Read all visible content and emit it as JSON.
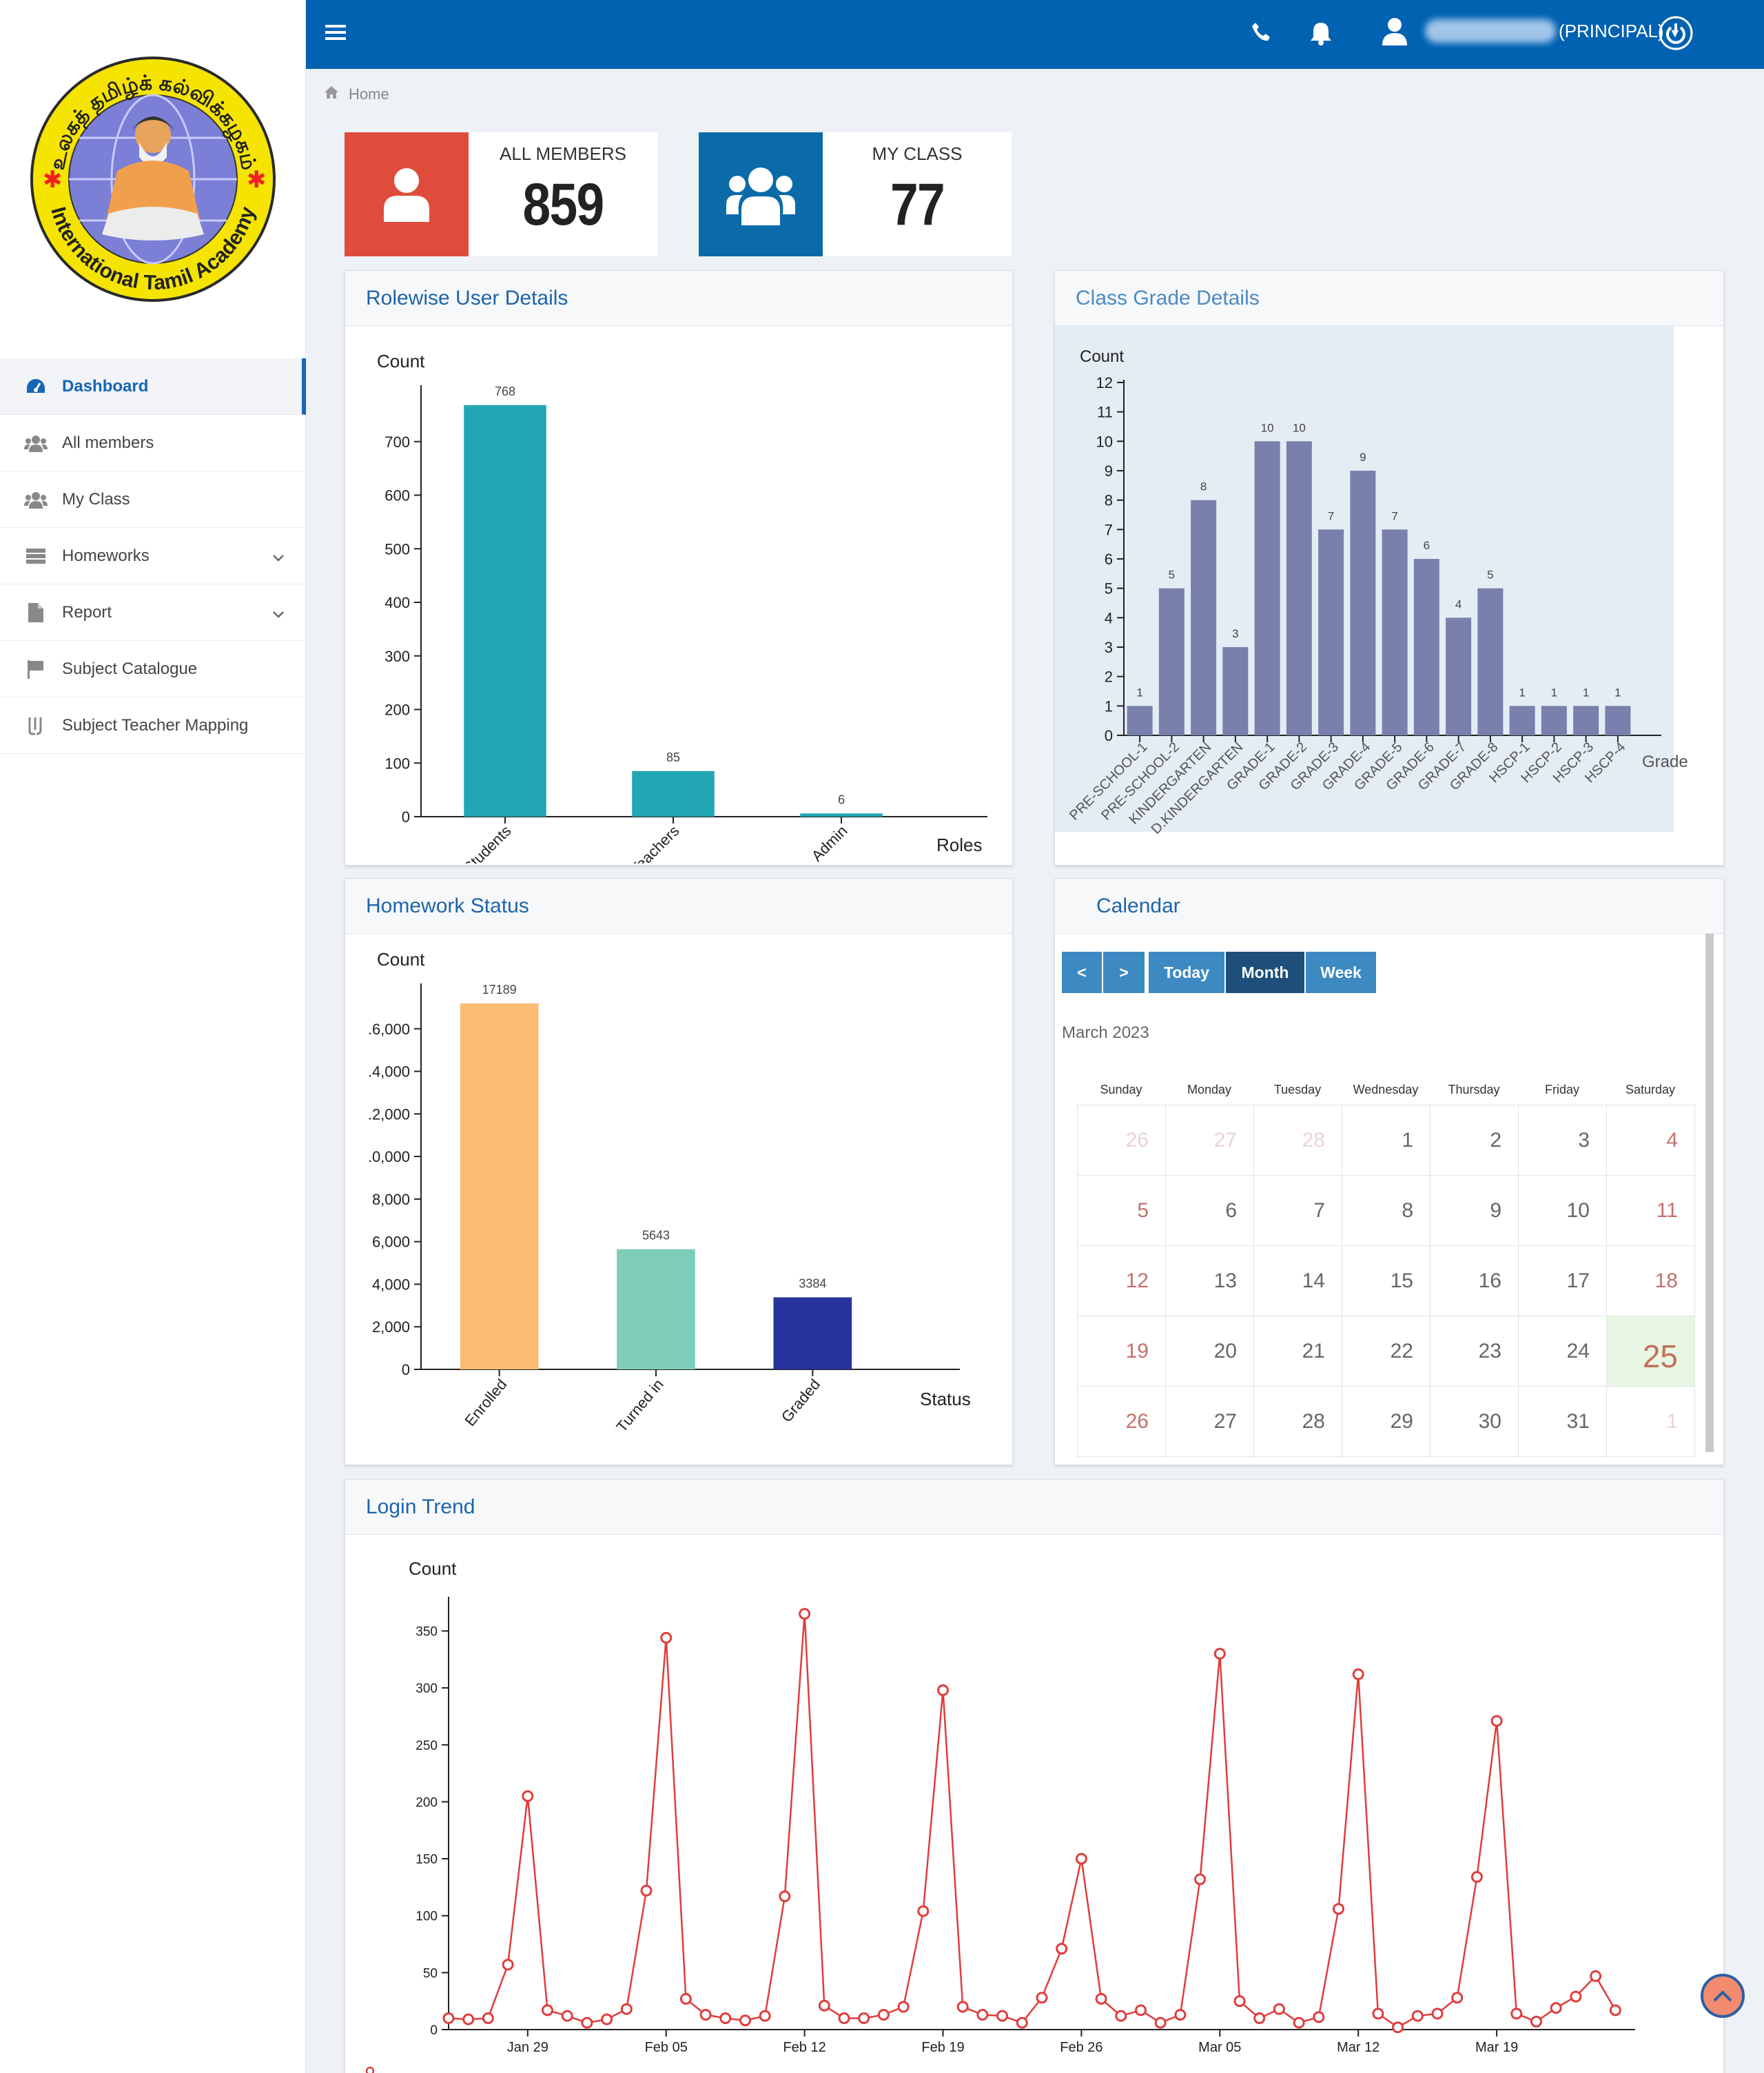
{
  "sidebar": {
    "logo": {
      "top_text": "உலகத் தமிழ்க் கல்விக்கழகம்",
      "bottom_text": "International Tamil Academy"
    },
    "items": [
      {
        "label": "Dashboard",
        "icon": "dashboard-icon",
        "active": true
      },
      {
        "label": "All members",
        "icon": "users-icon",
        "active": false
      },
      {
        "label": "My Class",
        "icon": "users-icon",
        "active": false
      },
      {
        "label": "Homeworks",
        "icon": "tasks-icon",
        "active": false,
        "expandable": true
      },
      {
        "label": "Report",
        "icon": "file-icon",
        "active": false,
        "expandable": true
      },
      {
        "label": "Subject Catalogue",
        "icon": "flag-icon",
        "active": false
      },
      {
        "label": "Subject Teacher Mapping",
        "icon": "mapping-icon",
        "active": false
      }
    ]
  },
  "header": {
    "user_role": "(PRINCIPAL)"
  },
  "breadcrumb": {
    "home": "Home"
  },
  "stats": {
    "all_members": {
      "label": "ALL MEMBERS",
      "value": "859",
      "color": "#e04c3c"
    },
    "my_class": {
      "label": "MY CLASS",
      "value": "77",
      "color": "#0a6ba8"
    }
  },
  "panels": {
    "rolewise": "Rolewise User Details",
    "class_grade": "Class Grade Details",
    "homework": "Homework Status",
    "calendar": "Calendar",
    "login": "Login Trend"
  },
  "chart_data": [
    {
      "id": "rolewise",
      "type": "bar",
      "title": "Rolewise User Details",
      "ylabel": "Count",
      "xlabel": "Roles",
      "categories": [
        "Students",
        "Teachers",
        "Admin"
      ],
      "values": [
        768,
        85,
        6
      ],
      "ylim": [
        0,
        800
      ],
      "yticks": [
        0,
        100,
        200,
        300,
        400,
        500,
        600,
        700
      ],
      "color": "#21a6b3"
    },
    {
      "id": "class_grade",
      "type": "bar",
      "title": "Class Grade Details",
      "ylabel": "Count",
      "xlabel": "Grade",
      "categories": [
        "PRE-SCHOOL-1",
        "PRE-SCHOOL-2",
        "KINDERGARTEN",
        "D.KINDERGARTEN",
        "GRADE-1",
        "GRADE-2",
        "GRADE-3",
        "GRADE-4",
        "GRADE-5",
        "GRADE-6",
        "GRADE-7",
        "GRADE-8",
        "HSCP-1",
        "HSCP-2",
        "HSCP-3",
        "HSCP-4"
      ],
      "values": [
        1,
        5,
        8,
        3,
        10,
        10,
        7,
        9,
        7,
        6,
        4,
        5,
        1,
        1,
        1,
        1
      ],
      "ylim": [
        0,
        12
      ],
      "yticks": [
        0,
        1,
        2,
        3,
        4,
        5,
        6,
        7,
        8,
        9,
        10,
        11,
        12
      ],
      "color": "#7880ab"
    },
    {
      "id": "homework",
      "type": "bar",
      "title": "Homework Status",
      "ylabel": "Count",
      "xlabel": "Status",
      "categories": [
        "Enrolled",
        "Turned in",
        "Graded"
      ],
      "values": [
        17189,
        5643,
        3384
      ],
      "colors": [
        "#fcbb72",
        "#7dcdb8",
        "#27329a"
      ],
      "ylim": [
        0,
        18000
      ],
      "yticks": [
        0,
        2000,
        4000,
        6000,
        8000,
        10000,
        12000,
        14000,
        16000
      ],
      "ytick_labels": [
        "0",
        "2,000",
        "4,000",
        "6,000",
        "8,000",
        ".0,000",
        ".2,000",
        ".4,000",
        ".6,000"
      ]
    },
    {
      "id": "login",
      "type": "line",
      "title": "Login Trend",
      "ylabel": "Count",
      "ylim": [
        0,
        380
      ],
      "yticks": [
        0,
        50,
        100,
        150,
        200,
        250,
        300,
        350
      ],
      "xtick_labels": [
        "Jan 29",
        "Feb 05",
        "Feb 12",
        "Feb 19",
        "Feb 26",
        "Mar 05",
        "Mar 12",
        "Mar 19"
      ],
      "xtick_index": [
        4,
        11,
        18,
        25,
        32,
        39,
        46,
        53
      ],
      "values": [
        10,
        9,
        10,
        57,
        205,
        17,
        12,
        6,
        9,
        18,
        122,
        344,
        27,
        13,
        10,
        8,
        12,
        117,
        365,
        21,
        10,
        10,
        13,
        20,
        104,
        298,
        20,
        13,
        12,
        6,
        28,
        71,
        150,
        27,
        12,
        17,
        6,
        13,
        132,
        330,
        25,
        10,
        18,
        6,
        11,
        106,
        312,
        14,
        2,
        12,
        14,
        28,
        134,
        271,
        14,
        7,
        19,
        29,
        47,
        17
      ],
      "color": "#e03c3c"
    }
  ],
  "calendar": {
    "buttons": {
      "prev": "<",
      "next": ">",
      "today": "Today",
      "month": "Month",
      "week": "Week"
    },
    "month_label": "March 2023",
    "weekdays": [
      "Sunday",
      "Monday",
      "Tuesday",
      "Wednesday",
      "Thursday",
      "Friday",
      "Saturday"
    ],
    "days": [
      {
        "d": "26",
        "other": true
      },
      {
        "d": "27",
        "other": true
      },
      {
        "d": "28",
        "other": true
      },
      {
        "d": "1"
      },
      {
        "d": "2"
      },
      {
        "d": "3"
      },
      {
        "d": "4",
        "wknd": true
      },
      {
        "d": "5",
        "wknd": true
      },
      {
        "d": "6"
      },
      {
        "d": "7"
      },
      {
        "d": "8"
      },
      {
        "d": "9"
      },
      {
        "d": "10"
      },
      {
        "d": "11",
        "wknd": true
      },
      {
        "d": "12",
        "wknd": true
      },
      {
        "d": "13"
      },
      {
        "d": "14"
      },
      {
        "d": "15"
      },
      {
        "d": "16"
      },
      {
        "d": "17"
      },
      {
        "d": "18",
        "wknd": true
      },
      {
        "d": "19",
        "wknd": true
      },
      {
        "d": "20"
      },
      {
        "d": "21"
      },
      {
        "d": "22"
      },
      {
        "d": "23"
      },
      {
        "d": "24"
      },
      {
        "d": "25",
        "today": true
      },
      {
        "d": "26",
        "wknd": true
      },
      {
        "d": "27"
      },
      {
        "d": "28"
      },
      {
        "d": "29"
      },
      {
        "d": "30"
      },
      {
        "d": "31"
      },
      {
        "d": "1",
        "other": true
      }
    ]
  }
}
